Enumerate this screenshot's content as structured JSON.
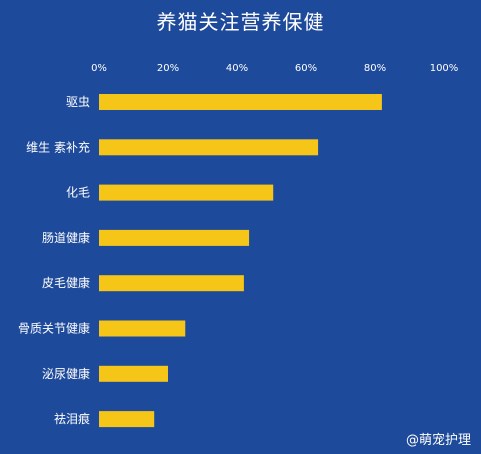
{
  "title": "养猫关注营养保健",
  "watermark": "@萌宠护理",
  "colors": {
    "background": "#1e4a9b",
    "bar": "#f5c518",
    "text": "#ffffff"
  },
  "chart_data": {
    "type": "bar",
    "orientation": "horizontal",
    "title": "养猫关注营养保健",
    "categories": [
      "驱虫",
      "维生 素补充",
      "化毛",
      "肠道健康",
      "皮毛健康",
      "骨质关节健康",
      "泌尿健康",
      "祛泪痕"
    ],
    "values": [
      82,
      63.5,
      50.5,
      43.5,
      42,
      25,
      20,
      16
    ],
    "tick_labels": [
      "0%",
      "20%",
      "40%",
      "60%",
      "80%",
      "100%"
    ],
    "tick_values": [
      0,
      20,
      40,
      60,
      80,
      100
    ],
    "xlim": [
      0,
      100
    ],
    "axis_position": "top",
    "grid": false,
    "legend": "none"
  }
}
